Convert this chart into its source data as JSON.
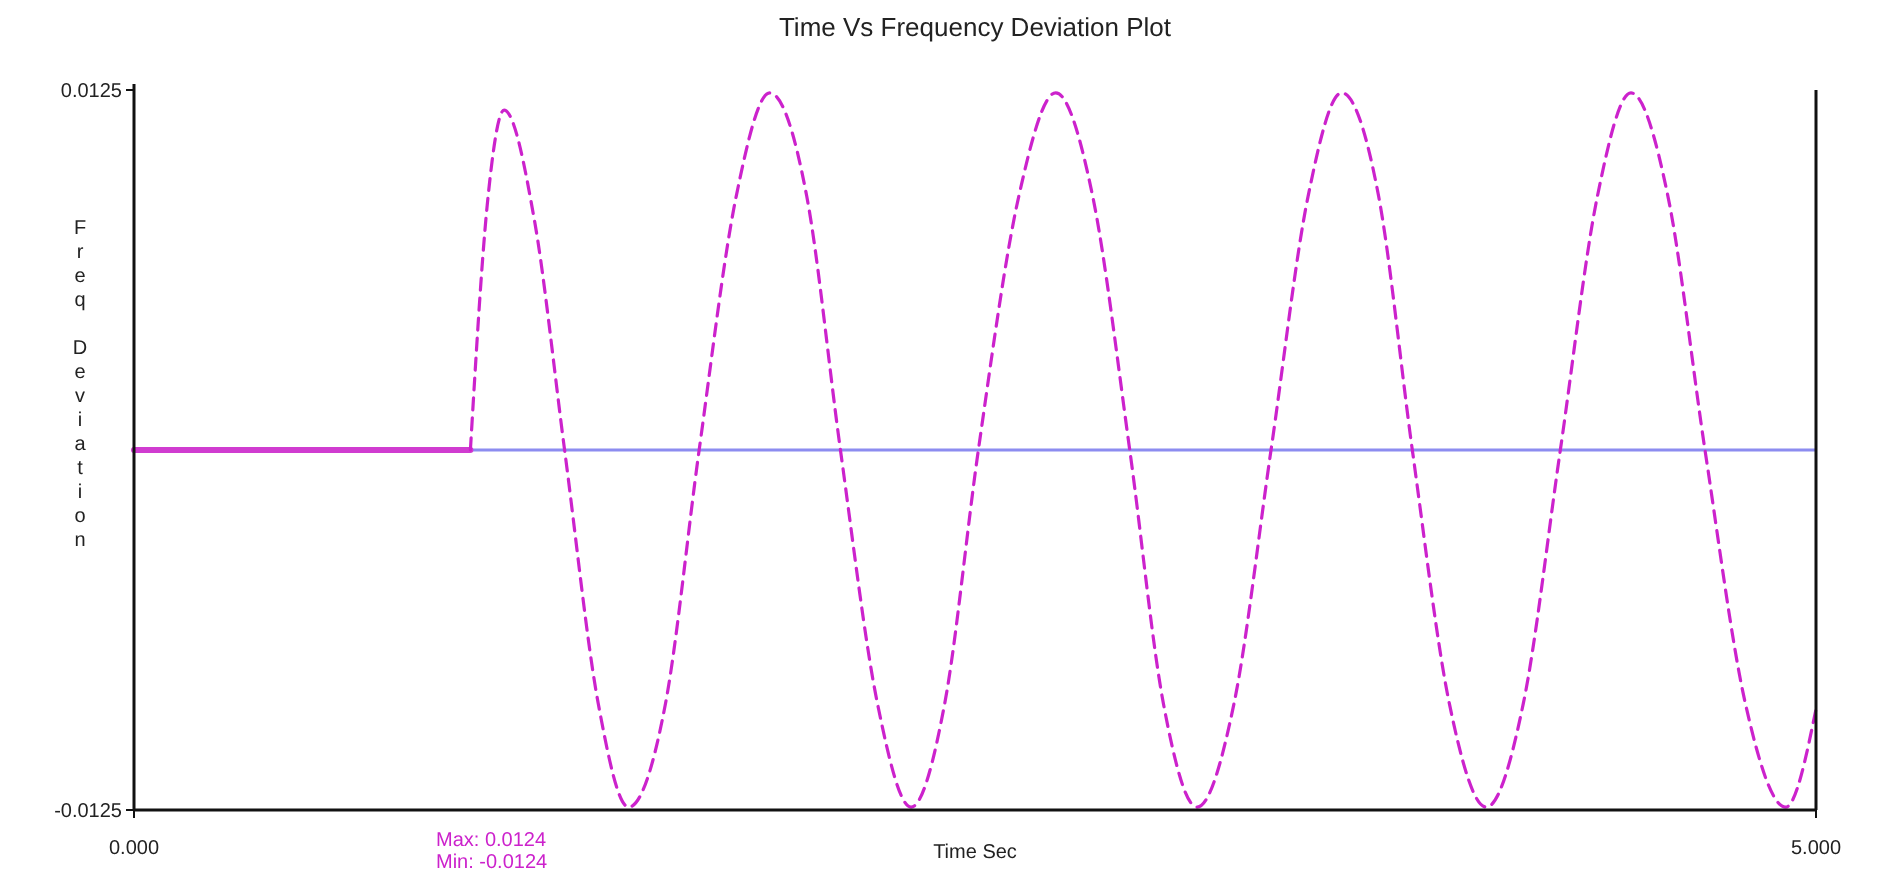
{
  "chart_data": {
    "type": "line",
    "title": "Time Vs Frequency Deviation Plot",
    "xlabel": "Time Sec",
    "ylabel": "Freq Deviation",
    "xlim": [
      0,
      5
    ],
    "xticks": [
      {
        "value": 0,
        "label": "0.000"
      },
      {
        "value": 5,
        "label": "5.000"
      }
    ],
    "ylim": [
      -0.0125,
      0.0125
    ],
    "yticks": [
      0.0125,
      -0.0125
    ],
    "ref_lines": [
      {
        "axis": "y",
        "value": 0,
        "color": "#8c8cf0"
      }
    ],
    "annotations": [
      "Max: 0.0124",
      "Min: -0.0124"
    ],
    "series": [
      {
        "color": "#d03cd0",
        "line_style": "solid",
        "x": [
          0,
          1.0
        ],
        "values": [
          0,
          0
        ]
      },
      {
        "color": "#cc22cc",
        "line_style": "dashed",
        "x": [
          1.0,
          1.05,
          1.1,
          1.19,
          1.28,
          1.38,
          1.47,
          1.58,
          1.68,
          1.79,
          1.89,
          2.0,
          2.1,
          2.21,
          2.31,
          2.41,
          2.51,
          2.63,
          2.74,
          2.85,
          2.96,
          3.06,
          3.16,
          3.27,
          3.38,
          3.49,
          3.59,
          3.7,
          3.8,
          3.91,
          4.02,
          4.13,
          4.24,
          4.35,
          4.45,
          4.56,
          4.67,
          4.79,
          4.91,
          5.0
        ],
        "values": [
          0,
          0.0085,
          0.0118,
          0.008,
          0,
          -0.0088,
          -0.0124,
          -0.0088,
          0,
          0.0088,
          0.0124,
          0.0088,
          0,
          -0.0088,
          -0.0124,
          -0.0088,
          0,
          0.0088,
          0.0124,
          0.0088,
          0,
          -0.0088,
          -0.0124,
          -0.0088,
          0,
          0.0088,
          0.0124,
          0.0088,
          0,
          -0.0088,
          -0.0124,
          -0.0088,
          0,
          0.0088,
          0.0124,
          0.0088,
          0,
          -0.0088,
          -0.0124,
          -0.009
        ]
      }
    ]
  }
}
